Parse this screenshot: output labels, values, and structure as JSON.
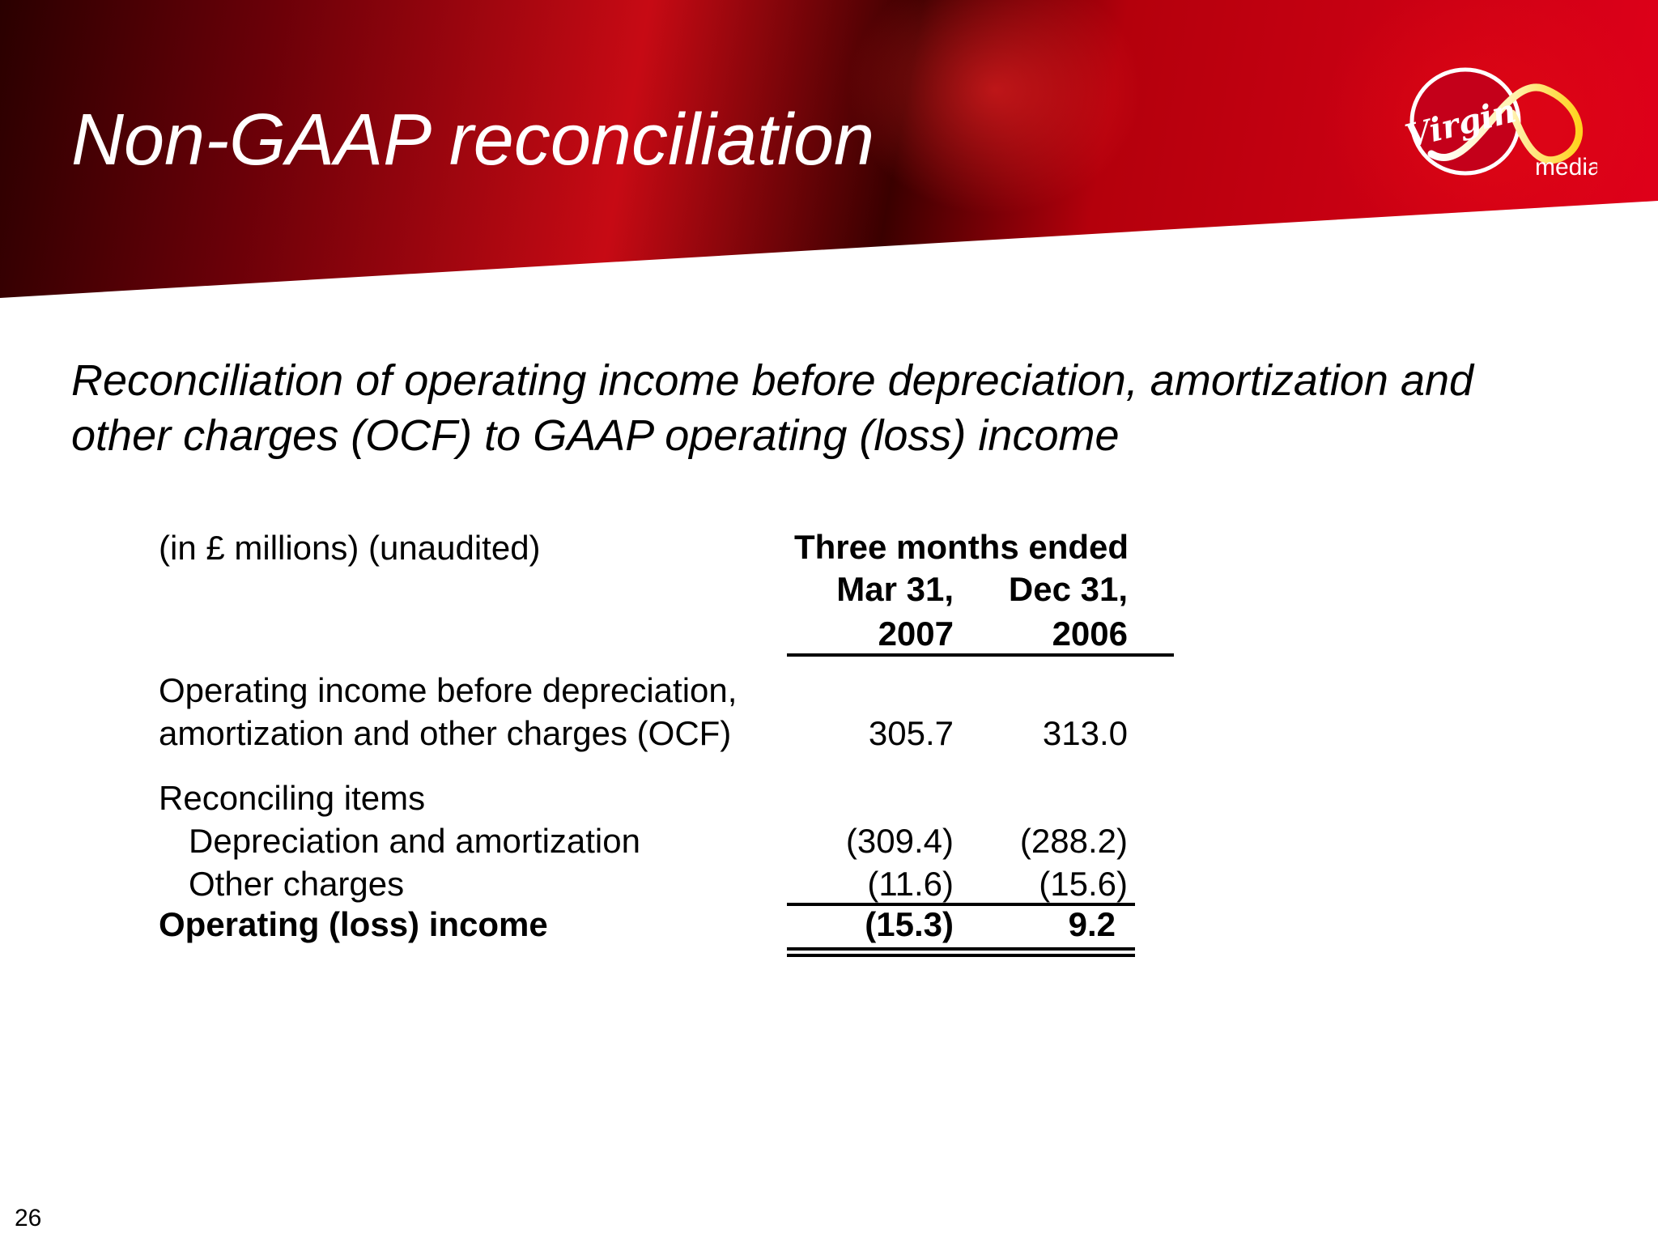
{
  "slide": {
    "title": "Non-GAAP reconciliation",
    "subtitle_line1": "Reconciliation of operating income before depreciation, amortization and",
    "subtitle_line2": "other charges (OCF) to GAAP operating (loss) income",
    "page_number": "26"
  },
  "logo": {
    "icon": "virgin-media-logo",
    "text_virgin": "Virgin",
    "text_media": "media"
  },
  "table": {
    "units_label": "(in £ millions) (unaudited)",
    "period_header": "Three months ended",
    "columns": [
      {
        "line1": "Mar 31,",
        "line2": "2007"
      },
      {
        "line1": "Dec 31,",
        "line2": "2006"
      }
    ],
    "ocf": {
      "label_line1": "Operating income before depreciation,",
      "label_line2": "amortization and other charges (OCF)",
      "values": [
        "305.7",
        "313.0"
      ]
    },
    "reconciling_label": "Reconciling items",
    "depreciation": {
      "label": "Depreciation and amortization",
      "values": [
        "(309.4)",
        "(288.2)"
      ]
    },
    "other_charges": {
      "label": "Other charges",
      "values": [
        "(11.6)",
        "(15.6)"
      ]
    },
    "operating_income": {
      "label": "Operating (loss) income",
      "values": [
        "(15.3)",
        "9.2"
      ]
    }
  }
}
